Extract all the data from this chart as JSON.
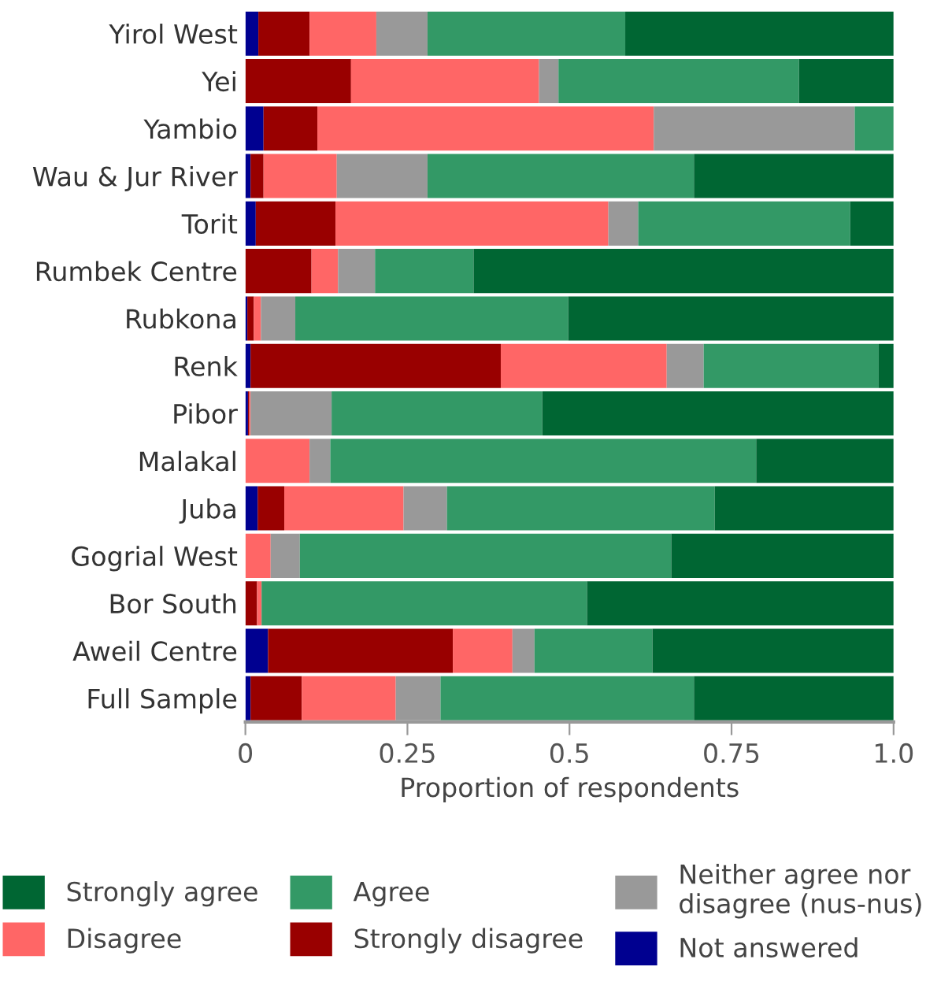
{
  "chart_data": {
    "type": "bar",
    "orientation": "horizontal",
    "stacked": true,
    "xlabel": "Proportion of respondents",
    "categories": [
      "Yirol West",
      "Yei",
      "Yambio",
      "Wau & Jur River",
      "Torit",
      "Rumbek Centre",
      "Rubkona",
      "Renk",
      "Pibor",
      "Malakal",
      "Juba",
      "Gogrial West",
      "Bor South",
      "Aweil Centre",
      "Full Sample"
    ],
    "series": [
      {
        "name": "Not answered",
        "color": "#000090",
        "values": [
          0.02,
          0,
          0.028,
          0.008,
          0.016,
          0,
          0.003,
          0.008,
          0.004,
          0,
          0.019,
          0,
          0,
          0.035,
          0.008
        ]
      },
      {
        "name": "Strongly disagree",
        "color": "#990000",
        "values": [
          0.079,
          0.163,
          0.083,
          0.02,
          0.123,
          0.102,
          0.01,
          0.386,
          0.002,
          0,
          0.041,
          0,
          0.018,
          0.285,
          0.079
        ]
      },
      {
        "name": "Disagree",
        "color": "#ff6666",
        "values": [
          0.103,
          0.29,
          0.519,
          0.113,
          0.421,
          0.041,
          0.011,
          0.256,
          0.002,
          0.099,
          0.184,
          0.039,
          0.007,
          0.092,
          0.145
        ]
      },
      {
        "name": "Neither agree nor\ndisagree (nus-nus)",
        "color": "#999999",
        "values": [
          0.079,
          0.03,
          0.31,
          0.14,
          0.046,
          0.057,
          0.053,
          0.057,
          0.125,
          0.032,
          0.067,
          0.045,
          0,
          0.034,
          0.069
        ]
      },
      {
        "name": "Agree",
        "color": "#339966",
        "values": [
          0.305,
          0.371,
          0.06,
          0.411,
          0.327,
          0.152,
          0.421,
          0.27,
          0.325,
          0.657,
          0.413,
          0.573,
          0.502,
          0.182,
          0.391
        ]
      },
      {
        "name": "Strongly agree",
        "color": "#006633",
        "values": [
          0.414,
          0.146,
          0,
          0.308,
          0.067,
          0.648,
          0.502,
          0.023,
          0.542,
          0.212,
          0.276,
          0.343,
          0.473,
          0.372,
          0.308
        ]
      }
    ],
    "xlim": [
      0,
      1.0
    ],
    "xticks": [
      0,
      0.25,
      0.5,
      0.75,
      {
        "value": 1.0,
        "label": "1.0"
      }
    ],
    "legend": "bottom",
    "grid": false
  }
}
